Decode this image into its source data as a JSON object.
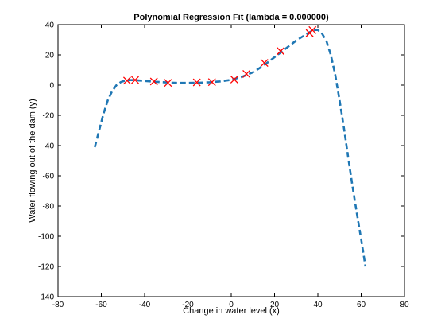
{
  "chart_data": {
    "type": "scatter",
    "title": "Polynomial Regression Fit (lambda = 0.000000)",
    "xlabel": "Change in water level (x)",
    "ylabel": "Water flowing out of the dam (y)",
    "xlim": [
      -80,
      80
    ],
    "ylim": [
      -140,
      40
    ],
    "xticks": [
      -80,
      -60,
      -40,
      -20,
      0,
      20,
      40,
      60,
      80
    ],
    "yticks": [
      -140,
      -120,
      -100,
      -80,
      -60,
      -40,
      -20,
      0,
      20,
      40
    ],
    "xtick_labels": [
      "-80",
      "-60",
      "-40",
      "-20",
      "0",
      "20",
      "40",
      "60",
      "80"
    ],
    "ytick_labels": [
      "-140",
      "-120",
      "-100",
      "-80",
      "-60",
      "-40",
      "-20",
      "0",
      "20",
      "40"
    ],
    "grid": false,
    "series": [
      {
        "kind": "markers",
        "marker": "x",
        "color": "#ff0000",
        "x": [
          -48.1,
          -44.4,
          -35.7,
          -29.2,
          -15.9,
          -8.9,
          1.4,
          7.0,
          15.3,
          22.8,
          36.2,
          37.5
        ],
        "y": [
          3.0,
          3.4,
          2.4,
          1.5,
          1.8,
          2.0,
          3.7,
          7.4,
          14.7,
          22.5,
          34.4,
          36.4
        ]
      },
      {
        "kind": "line",
        "style": "dashed",
        "color": "#1f77b4",
        "x": [
          -63,
          -61,
          -59,
          -57,
          -55,
          -53,
          -51,
          -49,
          -47,
          -45,
          -40,
          -35,
          -30,
          -25,
          -20,
          -15,
          -10,
          -5,
          0,
          5,
          10,
          15,
          20,
          25,
          30,
          35,
          38,
          40,
          42,
          44,
          46,
          48,
          50,
          52,
          54,
          56,
          58,
          60,
          62
        ],
        "y": [
          -41,
          -30,
          -19,
          -10,
          -4,
          0,
          2,
          3,
          3.3,
          3.3,
          2.8,
          2.2,
          1.8,
          1.5,
          1.5,
          1.6,
          1.9,
          2.5,
          3.5,
          5.5,
          8.5,
          13,
          18.5,
          24,
          29.5,
          34,
          36.5,
          36.5,
          34,
          29,
          20,
          7,
          -10,
          -28,
          -48,
          -67,
          -85,
          -102,
          -120
        ]
      }
    ]
  },
  "colors": {
    "markers": "#ff0000",
    "fit_line": "#1f77b4",
    "axes": "#000000"
  }
}
